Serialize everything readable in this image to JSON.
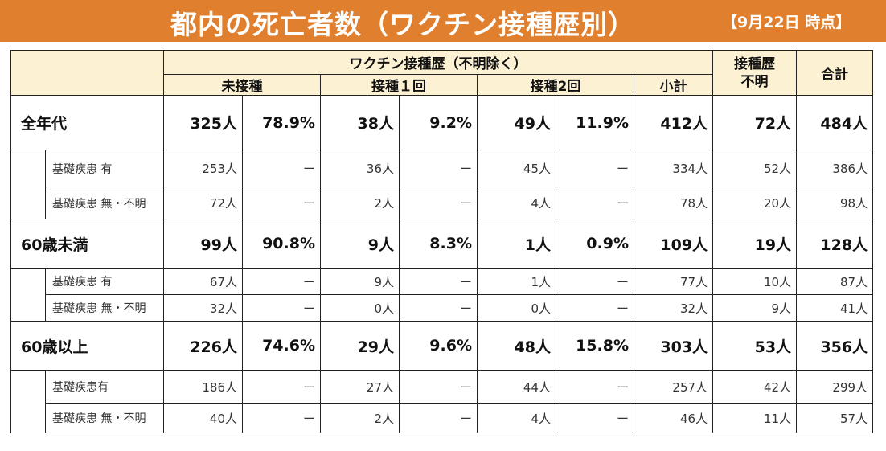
{
  "banner": {
    "title": "都内の死亡者数（ワクチン接種歴別）",
    "date": "【9月22日 時点】"
  },
  "header": {
    "vaccine_history": "ワクチン接種歴（不明除く）",
    "unvaccinated": "未接種",
    "dose1": "接種１回",
    "dose2": "接種2回",
    "subtotal": "小計",
    "unknown": "接種歴\n不明",
    "total": "合計"
  },
  "groups": [
    {
      "category": "全年代",
      "total": [
        "325人",
        "78.9%",
        "38人",
        "9.2%",
        "49人",
        "11.9%",
        "412人",
        "72人",
        "484人"
      ],
      "subs": [
        {
          "label": "基礎疾患 有",
          "values": [
            "253人",
            "ー",
            "36人",
            "ー",
            "45人",
            "ー",
            "334人",
            "52人",
            "386人"
          ]
        },
        {
          "label": "基礎疾患 無・不明",
          "values": [
            "72人",
            "ー",
            "2人",
            "ー",
            "4人",
            "ー",
            "78人",
            "20人",
            "98人"
          ]
        }
      ]
    },
    {
      "category": "60歳未満",
      "total": [
        "99人",
        "90.8%",
        "9人",
        "8.3%",
        "1人",
        "0.9%",
        "109人",
        "19人",
        "128人"
      ],
      "subs": [
        {
          "label": "基礎疾患 有",
          "values": [
            "67人",
            "ー",
            "9人",
            "ー",
            "1人",
            "ー",
            "77人",
            "10人",
            "87人"
          ]
        },
        {
          "label": "基礎疾患 無・不明",
          "values": [
            "32人",
            "ー",
            "0人",
            "ー",
            "0人",
            "ー",
            "32人",
            "9人",
            "41人"
          ]
        }
      ]
    },
    {
      "category": "60歳以上",
      "total": [
        "226人",
        "74.6%",
        "29人",
        "9.6%",
        "48人",
        "15.8%",
        "303人",
        "53人",
        "356人"
      ],
      "subs": [
        {
          "label": "基礎疾患有",
          "values": [
            "186人",
            "ー",
            "27人",
            "ー",
            "44人",
            "ー",
            "257人",
            "42人",
            "299人"
          ]
        },
        {
          "label": "基礎疾患 無・不明",
          "values": [
            "40人",
            "ー",
            "2人",
            "ー",
            "4人",
            "ー",
            "46人",
            "11人",
            "57人"
          ]
        }
      ]
    }
  ]
}
